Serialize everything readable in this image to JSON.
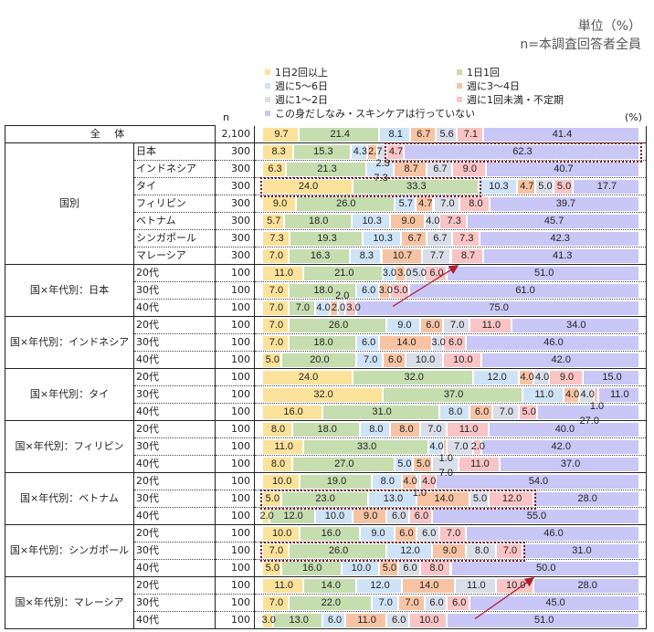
{
  "header": {
    "unit": "単位（%）",
    "base": "n=本調査回答者全員",
    "n_label": "n",
    "pct_label": "(%)"
  },
  "chart_data": {
    "type": "bar",
    "stacked": true,
    "orientation": "horizontal",
    "xlim": [
      0,
      100
    ],
    "legend_placement": "top",
    "series": [
      {
        "name": "1日2回以上",
        "color": "#fbe29a"
      },
      {
        "name": "1日1回",
        "color": "#c6ddb0"
      },
      {
        "name": "週に5～6日",
        "color": "#cfe3f7"
      },
      {
        "name": "週に3～4日",
        "color": "#f6c4a4"
      },
      {
        "name": "週に1～2日",
        "color": "#d9dee9"
      },
      {
        "name": "週に1回未満・不定期",
        "color": "#f8c4c6"
      },
      {
        "name": "この身だしなみ・スキンケアは行っていない",
        "color": "#c9c7f6"
      }
    ],
    "rows": [
      {
        "group": "全 体",
        "label": "",
        "n": "2,100",
        "values": [
          9.7,
          21.4,
          8.1,
          6.7,
          5.6,
          7.1,
          41.4
        ]
      },
      {
        "group": "国別",
        "label": "日本",
        "n": "300",
        "values": [
          8.3,
          15.3,
          4.3,
          2.7,
          2.3,
          4.7,
          62.3
        ]
      },
      {
        "group": "国別",
        "label": "インドネシア",
        "n": "300",
        "values": [
          6.3,
          21.3,
          7.3,
          8.7,
          6.7,
          9.0,
          40.7
        ]
      },
      {
        "group": "国別",
        "label": "タイ",
        "n": "300",
        "values": [
          24.0,
          33.3,
          10.3,
          4.7,
          5.0,
          5.0,
          17.7
        ]
      },
      {
        "group": "国別",
        "label": "フィリピン",
        "n": "300",
        "values": [
          9.0,
          26.0,
          5.7,
          4.7,
          7.0,
          8.0,
          39.7
        ]
      },
      {
        "group": "国別",
        "label": "ベトナム",
        "n": "300",
        "values": [
          5.7,
          18.0,
          10.3,
          9.0,
          4.0,
          7.3,
          45.7
        ]
      },
      {
        "group": "国別",
        "label": "シンガポール",
        "n": "300",
        "values": [
          7.3,
          19.3,
          10.3,
          6.7,
          6.7,
          7.3,
          42.3
        ]
      },
      {
        "group": "国別",
        "label": "マレーシア",
        "n": "300",
        "values": [
          7.0,
          16.3,
          8.3,
          10.7,
          7.7,
          8.7,
          41.3
        ]
      },
      {
        "group": "国×年代別：日本",
        "label": "20代",
        "n": "100",
        "values": [
          11.0,
          21.0,
          3.0,
          3.0,
          5.0,
          6.0,
          51.0
        ]
      },
      {
        "group": "国×年代別：日本",
        "label": "30代",
        "n": "100",
        "values": [
          7.0,
          18.0,
          6.0,
          3.0,
          0,
          5.0,
          61.0
        ]
      },
      {
        "group": "国×年代別：日本",
        "label": "40代",
        "n": "100",
        "values": [
          7.0,
          7.0,
          4.0,
          2.0,
          2.0,
          3.0,
          75.0
        ]
      },
      {
        "group": "国×年代別：インドネシア",
        "label": "20代",
        "n": "100",
        "values": [
          7.0,
          26.0,
          9.0,
          6.0,
          7.0,
          11.0,
          34.0
        ]
      },
      {
        "group": "国×年代別：インドネシア",
        "label": "30代",
        "n": "100",
        "values": [
          7.0,
          18.0,
          6.0,
          14.0,
          3.0,
          6.0,
          46.0
        ]
      },
      {
        "group": "国×年代別：インドネシア",
        "label": "40代",
        "n": "100",
        "values": [
          5.0,
          20.0,
          7.0,
          6.0,
          10.0,
          10.0,
          42.0
        ]
      },
      {
        "group": "国×年代別：タイ",
        "label": "20代",
        "n": "100",
        "values": [
          24.0,
          32.0,
          12.0,
          4.0,
          4.0,
          9.0,
          15.0
        ]
      },
      {
        "group": "国×年代別：タイ",
        "label": "30代",
        "n": "100",
        "values": [
          32.0,
          37.0,
          11.0,
          4.0,
          4.0,
          1.0,
          11.0
        ]
      },
      {
        "group": "国×年代別：タイ",
        "label": "40代",
        "n": "100",
        "values": [
          16.0,
          31.0,
          8.0,
          6.0,
          7.0,
          5.0,
          27.0
        ]
      },
      {
        "group": "国×年代別：フィリピン",
        "label": "20代",
        "n": "100",
        "values": [
          8.0,
          18.0,
          8.0,
          8.0,
          7.0,
          11.0,
          40.0
        ]
      },
      {
        "group": "国×年代別：フィリピン",
        "label": "30代",
        "n": "100",
        "values": [
          11.0,
          33.0,
          4.0,
          1.0,
          7.0,
          2.0,
          42.0
        ]
      },
      {
        "group": "国×年代別：フィリピン",
        "label": "40代",
        "n": "100",
        "values": [
          8.0,
          27.0,
          5.0,
          5.0,
          7.0,
          11.0,
          37.0
        ]
      },
      {
        "group": "国×年代別：ベトナム",
        "label": "20代",
        "n": "100",
        "values": [
          10.0,
          19.0,
          8.0,
          4.0,
          1.0,
          4.0,
          54.0
        ]
      },
      {
        "group": "国×年代別：ベトナム",
        "label": "30代",
        "n": "100",
        "values": [
          5.0,
          23.0,
          13.0,
          14.0,
          5.0,
          12.0,
          28.0
        ]
      },
      {
        "group": "国×年代別：ベトナム",
        "label": "40代",
        "n": "100",
        "values": [
          2.0,
          12.0,
          10.0,
          9.0,
          6.0,
          6.0,
          55.0
        ]
      },
      {
        "group": "国×年代別：シンガポール",
        "label": "20代",
        "n": "100",
        "values": [
          10.0,
          16.0,
          9.0,
          6.0,
          6.0,
          7.0,
          46.0
        ]
      },
      {
        "group": "国×年代別：シンガポール",
        "label": "30代",
        "n": "100",
        "values": [
          7.0,
          26.0,
          12.0,
          9.0,
          8.0,
          7.0,
          31.0
        ]
      },
      {
        "group": "国×年代別：シンガポール",
        "label": "40代",
        "n": "100",
        "values": [
          5.0,
          16.0,
          10.0,
          5.0,
          6.0,
          8.0,
          50.0
        ]
      },
      {
        "group": "国×年代別：マレーシア",
        "label": "20代",
        "n": "100",
        "values": [
          11.0,
          14.0,
          12.0,
          14.0,
          11.0,
          10.0,
          28.0
        ]
      },
      {
        "group": "国×年代別：マレーシア",
        "label": "30代",
        "n": "100",
        "values": [
          7.0,
          22.0,
          7.0,
          7.0,
          6.0,
          6.0,
          45.0
        ]
      },
      {
        "group": "国×年代別：マレーシア",
        "label": "40代",
        "n": "100",
        "values": [
          3.0,
          13.0,
          6.0,
          11.0,
          6.0,
          10.0,
          51.0
        ]
      }
    ],
    "highlights": [
      {
        "row": 1,
        "from_series": 5,
        "to_series": 6
      },
      {
        "row": 3,
        "from_series": 0,
        "to_series": 1
      },
      {
        "row": 21,
        "from_series": 0,
        "to_series": 5
      },
      {
        "row": 24,
        "from_series": 0,
        "to_series": 5
      }
    ],
    "arrows": [
      {
        "from_row": 10,
        "to_row": 8
      },
      {
        "from_row": 28,
        "to_row": 26
      }
    ]
  }
}
